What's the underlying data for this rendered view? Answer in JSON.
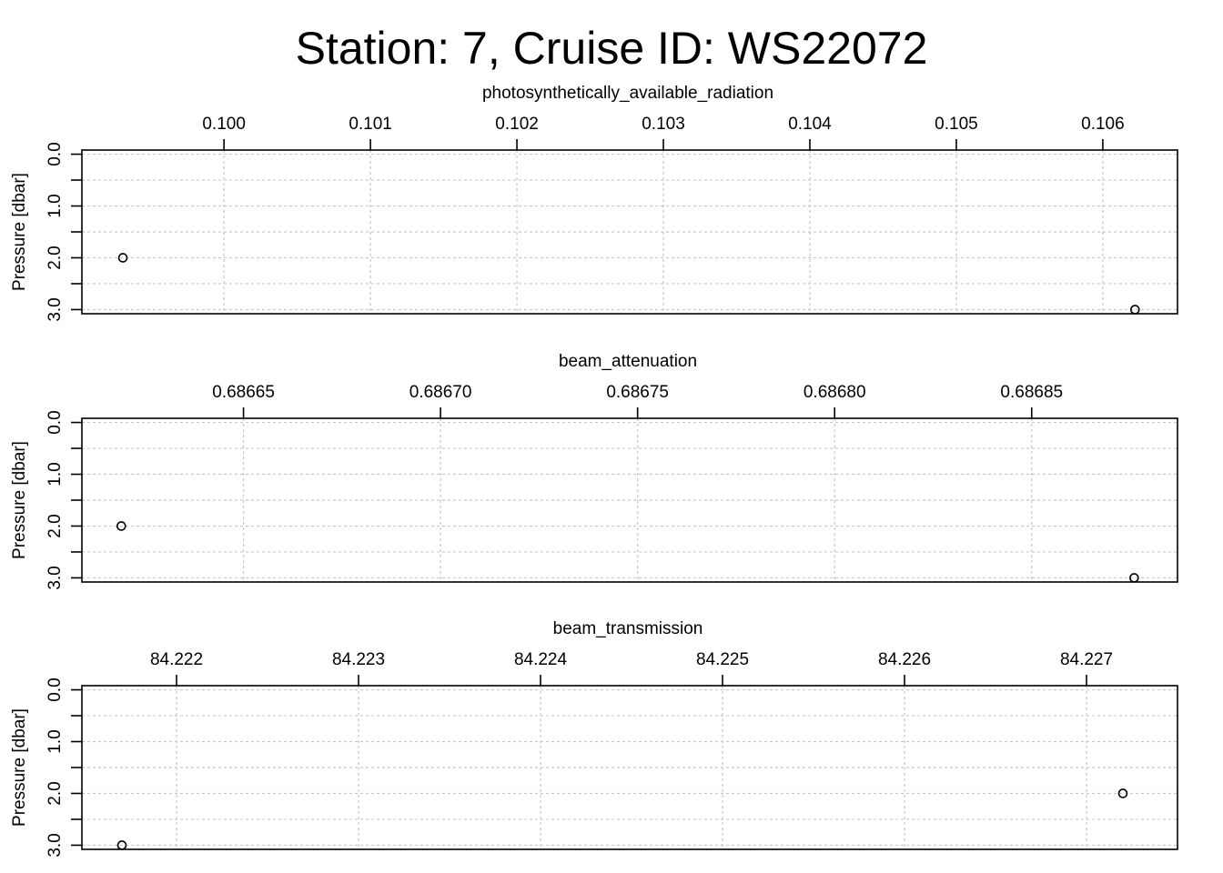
{
  "title": "Station: 7, Cruise ID: WS22072",
  "chart_data": [
    {
      "type": "scatter",
      "xlabel": "photosynthetically_available_radiation",
      "ylabel": "Pressure [dbar]",
      "x_ticks": [
        0.1,
        0.101,
        0.102,
        0.103,
        0.104,
        0.105,
        0.106
      ],
      "x_tick_labels": [
        "0.100",
        "0.101",
        "0.102",
        "0.103",
        "0.104",
        "0.105",
        "0.106"
      ],
      "xlim": [
        0.09903,
        0.10651
      ],
      "y_ticks": [
        0,
        0.5,
        1,
        1.5,
        2,
        2.5,
        3
      ],
      "y_tick_labels": [
        "0.0",
        "1.0",
        "2.0",
        "3.0"
      ],
      "y_label_values": [
        0,
        1,
        2,
        3
      ],
      "ylim": [
        3.08,
        -0.08
      ],
      "grid": true,
      "points": [
        {
          "x": 0.09931,
          "y": 2
        },
        {
          "x": 0.10622,
          "y": 3
        }
      ]
    },
    {
      "type": "scatter",
      "xlabel": "beam_attenuation",
      "ylabel": "Pressure [dbar]",
      "x_ticks": [
        0.68665,
        0.6867,
        0.68675,
        0.6868,
        0.68685
      ],
      "x_tick_labels": [
        "0.68665",
        "0.68670",
        "0.68675",
        "0.68680",
        "0.68685"
      ],
      "xlim": [
        0.686609,
        0.686887
      ],
      "y_ticks": [
        0,
        0.5,
        1,
        1.5,
        2,
        2.5,
        3
      ],
      "y_tick_labels": [
        "0.0",
        "1.0",
        "2.0",
        "3.0"
      ],
      "y_label_values": [
        0,
        1,
        2,
        3
      ],
      "ylim": [
        3.08,
        -0.08
      ],
      "grid": true,
      "points": [
        {
          "x": 0.686619,
          "y": 2
        },
        {
          "x": 0.686876,
          "y": 3
        }
      ]
    },
    {
      "type": "scatter",
      "xlabel": "beam_transmission",
      "ylabel": "Pressure [dbar]",
      "x_ticks": [
        84.222,
        84.223,
        84.224,
        84.225,
        84.226,
        84.227
      ],
      "x_tick_labels": [
        "84.222",
        "84.223",
        "84.224",
        "84.225",
        "84.226",
        "84.227"
      ],
      "xlim": [
        84.22148,
        84.2275
      ],
      "y_ticks": [
        0,
        0.5,
        1,
        1.5,
        2,
        2.5,
        3
      ],
      "y_tick_labels": [
        "0.0",
        "1.0",
        "2.0",
        "3.0"
      ],
      "y_label_values": [
        0,
        1,
        2,
        3
      ],
      "ylim": [
        3.08,
        -0.08
      ],
      "grid": true,
      "points": [
        {
          "x": 84.2272,
          "y": 2
        },
        {
          "x": 84.2217,
          "y": 3
        }
      ]
    }
  ]
}
